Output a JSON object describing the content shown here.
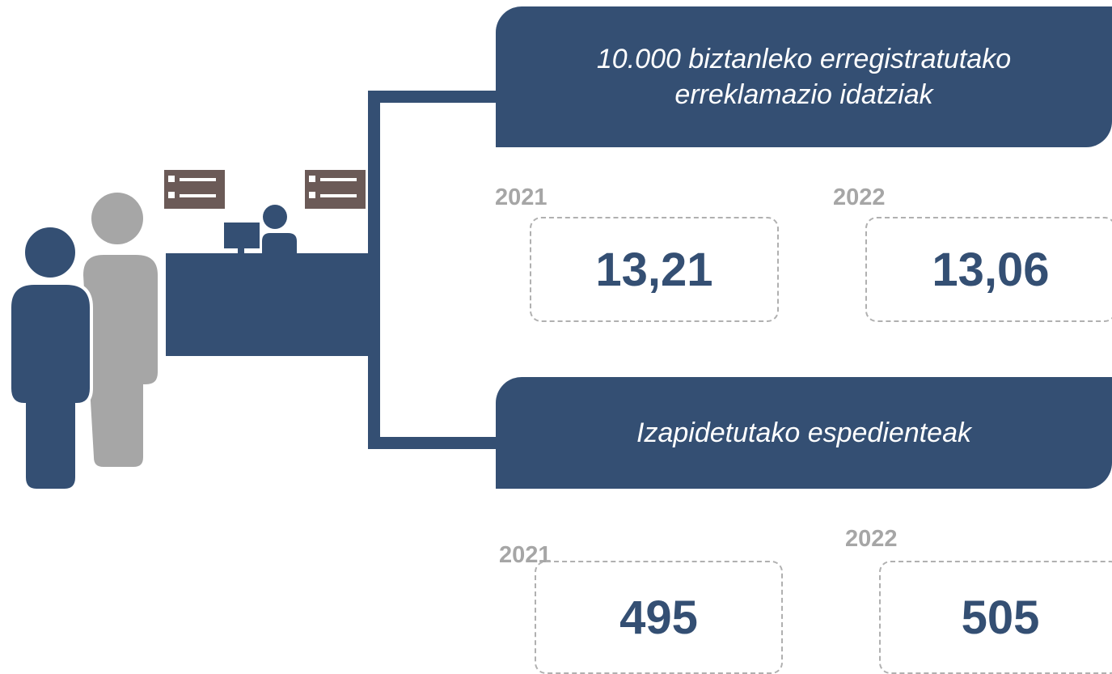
{
  "sections": [
    {
      "title": "10.000 biztanleko erregistratutako erreklamazio idatziak",
      "items": [
        {
          "year": "2021",
          "value": "13,21"
        },
        {
          "year": "2022",
          "value": "13,06"
        }
      ]
    },
    {
      "title": "Izapidetutako espedienteak",
      "items": [
        {
          "year": "2021",
          "value": "495"
        },
        {
          "year": "2022",
          "value": "505"
        }
      ]
    }
  ]
}
